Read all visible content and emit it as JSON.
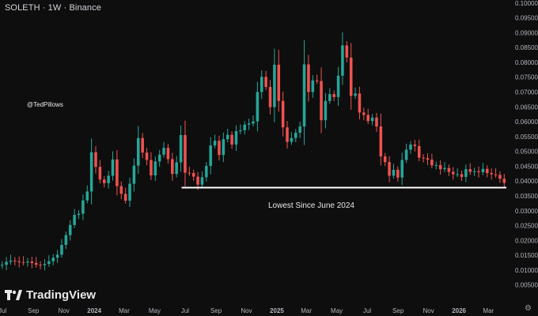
{
  "header": {
    "symbol_line": "SOLETH · 1W · Binance"
  },
  "watermark": {
    "handle": "@TedPillows"
  },
  "logo": {
    "text": "TradingView"
  },
  "icons": {
    "logo": "tradingview-logo-icon",
    "settings": "gear-icon"
  },
  "colors": {
    "up": "#26a69a",
    "down": "#ef5350",
    "background": "#0e0e0e",
    "support_line": "#ffffff"
  },
  "chart_data": {
    "type": "candlestick",
    "symbol": "SOLETH",
    "interval": "1W",
    "exchange": "Binance",
    "y_axis": {
      "ticks": [
        "0.10000",
        "0.09500",
        "0.09000",
        "0.08500",
        "0.08000",
        "0.07500",
        "0.07000",
        "0.06500",
        "0.06000",
        "0.05500",
        "0.05000",
        "0.04500",
        "0.04000",
        "0.03500",
        "0.03000",
        "0.02500",
        "0.02000",
        "0.01500",
        "0.01000",
        "0.00500"
      ],
      "range": [
        0.002,
        0.101
      ]
    },
    "x_axis": {
      "labels": [
        "Jul",
        "Sep",
        "Nov",
        "2024",
        "Mar",
        "May",
        "Jul",
        "Sep",
        "Nov",
        "2025",
        "Mar",
        "May",
        "Jul",
        "Sep",
        "Nov",
        "2026",
        "Mar"
      ],
      "range": [
        "2023-06-26",
        "2026-04-06"
      ]
    },
    "annotations": [
      {
        "text": "Lowest Since June 2024",
        "type": "horizontal_line",
        "value": 0.0378,
        "from": "2024-06-24",
        "to": "2026-04-06"
      }
    ],
    "weekly_closes": [
      0.0118,
      0.0128,
      0.0132,
      0.013,
      0.0127,
      0.0126,
      0.0129,
      0.0124,
      0.0118,
      0.0117,
      0.0121,
      0.013,
      0.0142,
      0.0152,
      0.0185,
      0.0218,
      0.0252,
      0.0286,
      0.029,
      0.0335,
      0.0365,
      0.0497,
      0.0448,
      0.0405,
      0.0393,
      0.0418,
      0.0473,
      0.0383,
      0.0357,
      0.0334,
      0.0391,
      0.0452,
      0.0545,
      0.0496,
      0.0471,
      0.0419,
      0.0466,
      0.0489,
      0.0512,
      0.0474,
      0.0424,
      0.0463,
      0.0555,
      0.0428,
      0.0427,
      0.0415,
      0.0388,
      0.0413,
      0.0451,
      0.052,
      0.0536,
      0.0488,
      0.0541,
      0.0556,
      0.0523,
      0.0568,
      0.0571,
      0.059,
      0.0594,
      0.0601,
      0.07,
      0.0751,
      0.0717,
      0.0649,
      0.0792,
      0.067,
      0.0581,
      0.0532,
      0.0545,
      0.0563,
      0.0584,
      0.0793,
      0.07,
      0.0739,
      0.0737,
      0.0605,
      0.067,
      0.0693,
      0.0683,
      0.0755,
      0.0857,
      0.0816,
      0.0687,
      0.0695,
      0.0631,
      0.0623,
      0.0602,
      0.0614,
      0.0584,
      0.0483,
      0.0464,
      0.0418,
      0.0438,
      0.0412,
      0.0471,
      0.0506,
      0.0523,
      0.0518,
      0.0479,
      0.0477,
      0.0472,
      0.0453,
      0.0454,
      0.044,
      0.0444,
      0.0431,
      0.0423,
      0.0423,
      0.0414,
      0.044,
      0.0431,
      0.0433,
      0.043,
      0.0441,
      0.0427,
      0.0423,
      0.0421,
      0.0408,
      0.0394
    ]
  }
}
